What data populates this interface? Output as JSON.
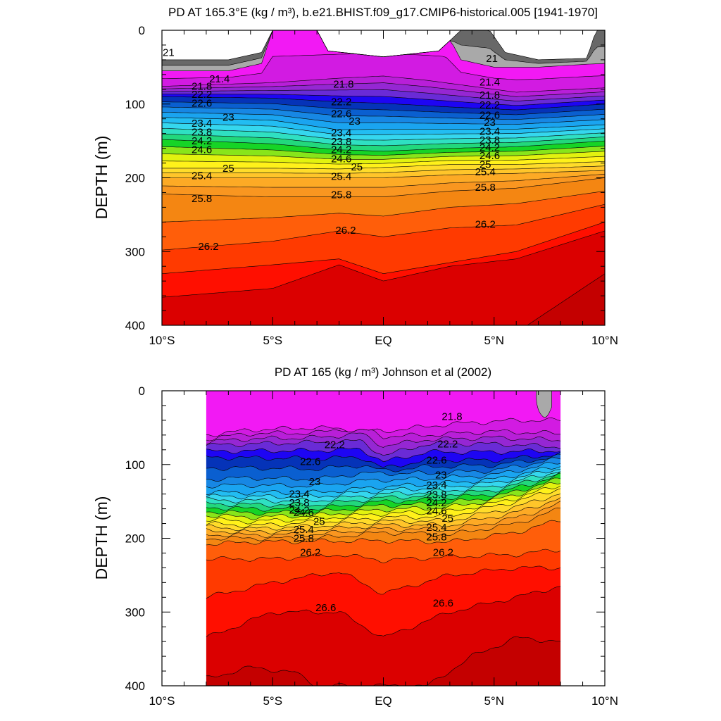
{
  "chart_data": [
    {
      "type": "contour",
      "title": "PD AT 165.3°E (kg / m³), b.e21.BHIST.f09_g17.CMIP6-historical.005 [1941-1970]",
      "ylabel": "DEPTH (m)",
      "xlim": [
        -10,
        10
      ],
      "ylim": [
        400,
        0
      ],
      "x_ticks": [
        -10,
        -5,
        0,
        5,
        10
      ],
      "x_tick_labels": [
        "10°S",
        "5°S",
        "EQ",
        "5°N",
        "10°N"
      ],
      "y_ticks": [
        0,
        100,
        200,
        300,
        400
      ],
      "y_tick_labels": [
        "0",
        "100",
        "200",
        "300",
        "400"
      ],
      "data_x_range": [
        -10,
        10
      ],
      "contour_interval": 0.2,
      "labeled_levels": [
        21,
        21.4,
        21.8,
        22.2,
        22.6,
        23,
        23.4,
        23.8,
        24.2,
        24.6,
        25,
        25.4,
        25.8,
        26.2
      ],
      "contour_labels": [
        {
          "text": "21",
          "x": -9.7,
          "y": 30
        },
        {
          "text": "21",
          "x": 4.9,
          "y": 38
        },
        {
          "text": "21.4",
          "x": -7.4,
          "y": 66
        },
        {
          "text": "21.4",
          "x": 4.8,
          "y": 70
        },
        {
          "text": "21.8",
          "x": -8.2,
          "y": 76
        },
        {
          "text": "21.8",
          "x": -1.8,
          "y": 73
        },
        {
          "text": "21.8",
          "x": 4.8,
          "y": 88
        },
        {
          "text": "22.2",
          "x": -8.2,
          "y": 87
        },
        {
          "text": "22.2",
          "x": -1.9,
          "y": 97
        },
        {
          "text": "22.2",
          "x": 4.8,
          "y": 101
        },
        {
          "text": "22.6",
          "x": -8.2,
          "y": 99
        },
        {
          "text": "22.6",
          "x": -1.9,
          "y": 113
        },
        {
          "text": "22.6",
          "x": 4.8,
          "y": 115
        },
        {
          "text": "23",
          "x": -7.0,
          "y": 118
        },
        {
          "text": "23",
          "x": -1.3,
          "y": 123
        },
        {
          "text": "23",
          "x": 4.8,
          "y": 125
        },
        {
          "text": "23.4",
          "x": -8.2,
          "y": 126
        },
        {
          "text": "23.4",
          "x": -1.9,
          "y": 139
        },
        {
          "text": "23.4",
          "x": 4.8,
          "y": 137
        },
        {
          "text": "23.8",
          "x": -8.2,
          "y": 138
        },
        {
          "text": "23.8",
          "x": -1.9,
          "y": 151
        },
        {
          "text": "23.8",
          "x": 4.8,
          "y": 149
        },
        {
          "text": "24.2",
          "x": -8.2,
          "y": 150
        },
        {
          "text": "24.2",
          "x": -1.9,
          "y": 162
        },
        {
          "text": "24.2",
          "x": 4.8,
          "y": 159
        },
        {
          "text": "24.6",
          "x": -8.2,
          "y": 162
        },
        {
          "text": "24.6",
          "x": -1.9,
          "y": 174
        },
        {
          "text": "24.6",
          "x": 4.8,
          "y": 170
        },
        {
          "text": "25",
          "x": -7.0,
          "y": 187
        },
        {
          "text": "25",
          "x": -1.2,
          "y": 185
        },
        {
          "text": "25",
          "x": 4.6,
          "y": 182
        },
        {
          "text": "25.4",
          "x": -8.2,
          "y": 197
        },
        {
          "text": "25.4",
          "x": -1.9,
          "y": 198
        },
        {
          "text": "25.4",
          "x": 4.6,
          "y": 192
        },
        {
          "text": "25.8",
          "x": -8.2,
          "y": 228
        },
        {
          "text": "25.8",
          "x": -1.9,
          "y": 223
        },
        {
          "text": "25.8",
          "x": 4.6,
          "y": 213
        },
        {
          "text": "26.2",
          "x": -7.9,
          "y": 293
        },
        {
          "text": "26.2",
          "x": -1.7,
          "y": 271
        },
        {
          "text": "26.2",
          "x": 4.6,
          "y": 263
        }
      ]
    },
    {
      "type": "contour",
      "title": "PD AT 165 (kg / m³) Johnson et al (2002)",
      "ylabel": "DEPTH (m)",
      "xlim": [
        -10,
        10
      ],
      "ylim": [
        400,
        0
      ],
      "x_ticks": [
        -10,
        -5,
        0,
        5,
        10
      ],
      "x_tick_labels": [
        "10°S",
        "5°S",
        "EQ",
        "5°N",
        "10°N"
      ],
      "y_ticks": [
        0,
        100,
        200,
        300,
        400
      ],
      "y_tick_labels": [
        "0",
        "100",
        "200",
        "300",
        "400"
      ],
      "data_x_range": [
        -8,
        8
      ],
      "contour_interval": 0.2,
      "labeled_levels": [
        21.8,
        22.2,
        22.6,
        23,
        23.4,
        23.8,
        24.2,
        24.6,
        25,
        25.4,
        25.8,
        26.2,
        26.6
      ],
      "contour_labels": [
        {
          "text": "21.8",
          "x": 3.1,
          "y": 35
        },
        {
          "text": "22.2",
          "x": -2.2,
          "y": 73
        },
        {
          "text": "22.2",
          "x": 2.9,
          "y": 72
        },
        {
          "text": "22.6",
          "x": -3.3,
          "y": 96
        },
        {
          "text": "22.6",
          "x": 2.4,
          "y": 94
        },
        {
          "text": "23",
          "x": -3.1,
          "y": 123
        },
        {
          "text": "23",
          "x": 2.6,
          "y": 114
        },
        {
          "text": "23.4",
          "x": -3.8,
          "y": 140
        },
        {
          "text": "23.4",
          "x": 2.4,
          "y": 128
        },
        {
          "text": "23.8",
          "x": -3.8,
          "y": 152
        },
        {
          "text": "23.8",
          "x": 2.4,
          "y": 141
        },
        {
          "text": "24.2",
          "x": -3.8,
          "y": 162
        },
        {
          "text": "24.2",
          "x": 2.4,
          "y": 152
        },
        {
          "text": "24.6",
          "x": -3.6,
          "y": 165
        },
        {
          "text": "24.6",
          "x": 2.4,
          "y": 163
        },
        {
          "text": "25",
          "x": -2.9,
          "y": 177
        },
        {
          "text": "25",
          "x": 2.9,
          "y": 173
        },
        {
          "text": "25.4",
          "x": -3.6,
          "y": 188
        },
        {
          "text": "25.4",
          "x": 2.4,
          "y": 185
        },
        {
          "text": "25.8",
          "x": -3.6,
          "y": 200
        },
        {
          "text": "25.8",
          "x": 2.4,
          "y": 198
        },
        {
          "text": "26.2",
          "x": -3.3,
          "y": 219
        },
        {
          "text": "26.2",
          "x": 2.7,
          "y": 219
        },
        {
          "text": "26.6",
          "x": -2.6,
          "y": 294
        },
        {
          "text": "26.6",
          "x": 2.7,
          "y": 288
        }
      ]
    }
  ]
}
